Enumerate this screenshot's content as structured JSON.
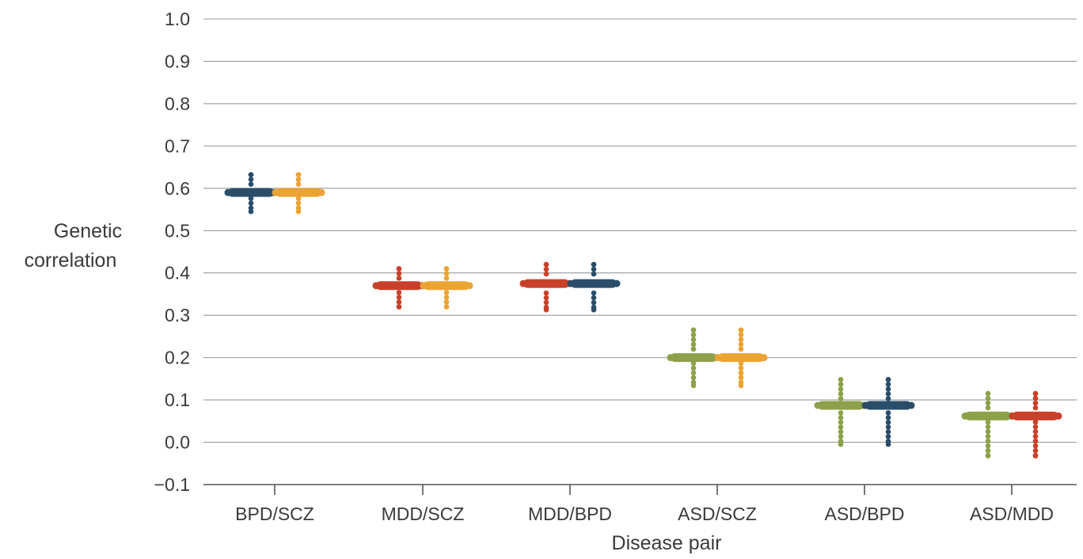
{
  "chart_data": {
    "type": "scatter",
    "xlabel": "Disease pair",
    "ylabel_lines": [
      "Genetic",
      "correlation"
    ],
    "ylim": [
      -0.1,
      1.0
    ],
    "yticks": [
      {
        "value": -0.1,
        "label": "−0.1"
      },
      {
        "value": 0.0,
        "label": "0.0"
      },
      {
        "value": 0.1,
        "label": "0.1"
      },
      {
        "value": 0.2,
        "label": "0.2"
      },
      {
        "value": 0.3,
        "label": "0.3"
      },
      {
        "value": 0.4,
        "label": "0.4"
      },
      {
        "value": 0.5,
        "label": "0.5"
      },
      {
        "value": 0.6,
        "label": "0.6"
      },
      {
        "value": 0.7,
        "label": "0.7"
      },
      {
        "value": 0.8,
        "label": "0.8"
      },
      {
        "value": 0.9,
        "label": "0.9"
      },
      {
        "value": 1.0,
        "label": "1.0"
      }
    ],
    "grid": true,
    "legend": "none",
    "categories": [
      "BPD/SCZ",
      "MDD/SCZ",
      "MDD/BPD",
      "ASD/SCZ",
      "ASD/BPD",
      "ASD/MDD"
    ],
    "colors": {
      "BPD": "#2a4d69",
      "SCZ": "#eba332",
      "MDD": "#c9402a",
      "ASD": "#8da14a"
    },
    "groups": [
      {
        "category": "BPD/SCZ",
        "pair": [
          {
            "disorder": "BPD",
            "center": 0.59,
            "low": 0.545,
            "high": 0.632
          },
          {
            "disorder": "SCZ",
            "center": 0.59,
            "low": 0.545,
            "high": 0.632
          }
        ]
      },
      {
        "category": "MDD/SCZ",
        "pair": [
          {
            "disorder": "MDD",
            "center": 0.37,
            "low": 0.32,
            "high": 0.41
          },
          {
            "disorder": "SCZ",
            "center": 0.37,
            "low": 0.32,
            "high": 0.41
          }
        ]
      },
      {
        "category": "MDD/BPD",
        "pair": [
          {
            "disorder": "MDD",
            "center": 0.375,
            "low": 0.313,
            "high": 0.42
          },
          {
            "disorder": "BPD",
            "center": 0.375,
            "low": 0.313,
            "high": 0.42
          }
        ]
      },
      {
        "category": "ASD/SCZ",
        "pair": [
          {
            "disorder": "ASD",
            "center": 0.2,
            "low": 0.134,
            "high": 0.265
          },
          {
            "disorder": "SCZ",
            "center": 0.2,
            "low": 0.134,
            "high": 0.265
          }
        ]
      },
      {
        "category": "ASD/BPD",
        "pair": [
          {
            "disorder": "ASD",
            "center": 0.087,
            "low": -0.005,
            "high": 0.148
          },
          {
            "disorder": "BPD",
            "center": 0.087,
            "low": -0.005,
            "high": 0.148
          }
        ]
      },
      {
        "category": "ASD/MDD",
        "pair": [
          {
            "disorder": "ASD",
            "center": 0.062,
            "low": -0.032,
            "high": 0.115
          },
          {
            "disorder": "MDD",
            "center": 0.062,
            "low": -0.032,
            "high": 0.115
          }
        ]
      }
    ]
  }
}
